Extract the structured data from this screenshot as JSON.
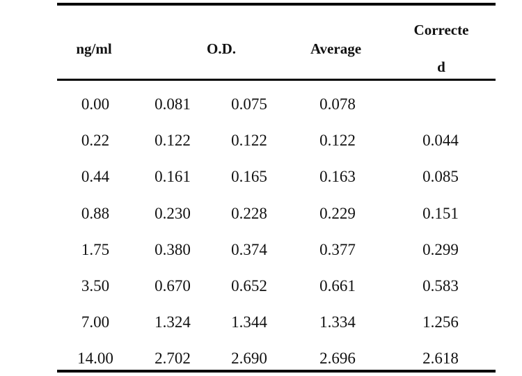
{
  "table": {
    "headers": {
      "col0": "ng/ml",
      "od": "O.D.",
      "average": "Average",
      "corrected_line1": "Correcte",
      "corrected_line2": "d"
    },
    "rows": [
      [
        "0.00",
        "0.081",
        "0.075",
        "0.078",
        ""
      ],
      [
        "0.22",
        "0.122",
        "0.122",
        "0.122",
        "0.044"
      ],
      [
        "0.44",
        "0.161",
        "0.165",
        "0.163",
        "0.085"
      ],
      [
        "0.88",
        "0.230",
        "0.228",
        "0.229",
        "0.151"
      ],
      [
        "1.75",
        "0.380",
        "0.374",
        "0.377",
        "0.299"
      ],
      [
        "3.50",
        "0.670",
        "0.652",
        "0.661",
        "0.583"
      ],
      [
        "7.00",
        "1.324",
        "1.344",
        "1.334",
        "1.256"
      ],
      [
        "14.00",
        "2.702",
        "2.690",
        "2.696",
        "2.618"
      ]
    ]
  }
}
